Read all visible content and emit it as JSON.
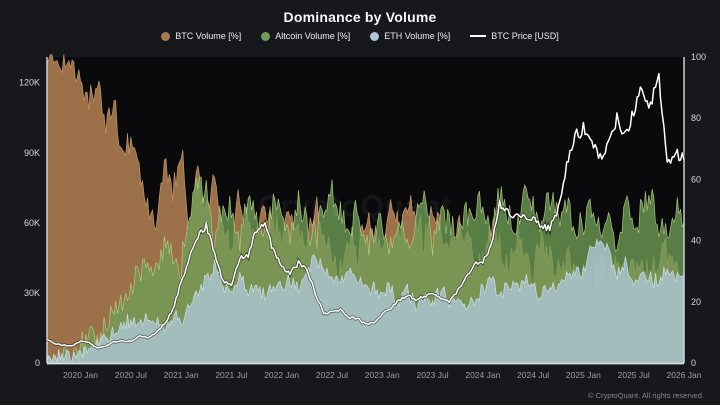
{
  "header": {
    "title": "Dominance by Volume"
  },
  "watermark": {
    "text": "CryptoQuant"
  },
  "footer": {
    "copyright": "© CryptoQuant. All rights reserved."
  },
  "chart_data": {
    "type": "area",
    "title": "Dominance by Volume",
    "background": "#17181c",
    "plot_background": "#0a0a0c",
    "grid": false,
    "legend_position": "top-center",
    "months": [
      "2019-09",
      "2019-10",
      "2019-11",
      "2019-12",
      "2020-01",
      "2020-02",
      "2020-03",
      "2020-04",
      "2020-05",
      "2020-06",
      "2020-07",
      "2020-08",
      "2020-09",
      "2020-10",
      "2020-11",
      "2020-12",
      "2021-01",
      "2021-02",
      "2021-03",
      "2021-04",
      "2021-05",
      "2021-06",
      "2021-07",
      "2021-08",
      "2021-09",
      "2021-10",
      "2021-11",
      "2021-12",
      "2022-01",
      "2022-02",
      "2022-03",
      "2022-04",
      "2022-05",
      "2022-06",
      "2022-07",
      "2022-08",
      "2022-09",
      "2022-10",
      "2022-11",
      "2022-12",
      "2023-01",
      "2023-02",
      "2023-03",
      "2023-04",
      "2023-05",
      "2023-06",
      "2023-07",
      "2023-08",
      "2023-09",
      "2023-10",
      "2023-11",
      "2023-12",
      "2024-01",
      "2024-02",
      "2024-03",
      "2024-04",
      "2024-05",
      "2024-06",
      "2024-07",
      "2024-08",
      "2024-09",
      "2024-10",
      "2024-11",
      "2024-12",
      "2025-01",
      "2025-02",
      "2025-03",
      "2025-04",
      "2025-05",
      "2025-06",
      "2025-07",
      "2025-08",
      "2025-09",
      "2025-10",
      "2025-11",
      "2025-12",
      "2026-01"
    ],
    "series": [
      {
        "name": "BTC Volume [%]",
        "axis": "right",
        "color": "#a9794e",
        "stroke": "#c9a06e",
        "opacity": 0.92,
        "values": [
          99,
          97,
          98,
          96,
          93,
          85,
          90,
          78,
          85,
          70,
          75,
          62,
          55,
          45,
          70,
          55,
          70,
          45,
          62,
          50,
          58,
          42,
          38,
          55,
          45,
          40,
          52,
          45,
          40,
          50,
          44,
          38,
          52,
          42,
          36,
          30,
          42,
          35,
          48,
          40,
          38,
          52,
          42,
          55,
          45,
          40,
          50,
          42,
          38,
          45,
          40,
          35,
          32,
          45,
          38,
          30,
          42,
          35,
          30,
          38,
          32,
          28,
          35,
          30,
          28,
          26,
          32,
          30,
          34,
          28,
          35,
          30,
          28,
          33,
          36,
          32,
          30
        ]
      },
      {
        "name": "Altcoin Volume [%]",
        "axis": "right",
        "color": "#6f9f56",
        "stroke": "#b3cf85",
        "opacity": 0.78,
        "values": [
          4,
          3,
          4,
          3,
          5,
          8,
          10,
          12,
          18,
          22,
          25,
          28,
          32,
          30,
          38,
          35,
          30,
          48,
          60,
          55,
          38,
          52,
          48,
          40,
          55,
          45,
          42,
          50,
          48,
          40,
          52,
          45,
          40,
          50,
          55,
          48,
          42,
          50,
          38,
          45,
          45,
          38,
          50,
          35,
          48,
          52,
          40,
          48,
          45,
          40,
          50,
          48,
          52,
          40,
          55,
          48,
          45,
          55,
          50,
          42,
          55,
          48,
          52,
          45,
          45,
          52,
          42,
          48,
          40,
          52,
          44,
          50,
          55,
          46,
          42,
          50,
          46
        ]
      },
      {
        "name": "ETH Volume [%]",
        "axis": "right",
        "color": "#aec7d8",
        "stroke": "#cfe2ee",
        "opacity": 0.8,
        "values": [
          2,
          2,
          2,
          2,
          3,
          5,
          6,
          8,
          10,
          12,
          14,
          12,
          16,
          14,
          12,
          15,
          14,
          18,
          22,
          28,
          32,
          25,
          22,
          28,
          24,
          26,
          22,
          25,
          25,
          28,
          24,
          30,
          34,
          32,
          28,
          26,
          30,
          28,
          25,
          24,
          22,
          25,
          20,
          24,
          18,
          22,
          20,
          24,
          20,
          22,
          18,
          20,
          24,
          28,
          22,
          26,
          24,
          28,
          25,
          22,
          26,
          24,
          28,
          30,
          30,
          38,
          42,
          36,
          28,
          32,
          26,
          30,
          28,
          26,
          32,
          28,
          27
        ]
      }
    ],
    "price": {
      "name": "BTC Price [USD]",
      "axis": "left",
      "color": "#ffffff",
      "unit": "K USD",
      "values": [
        10,
        8.3,
        7.6,
        7.2,
        9.4,
        8.8,
        6.4,
        7.1,
        9.2,
        9.4,
        9.2,
        11.7,
        10.8,
        13,
        16.5,
        23,
        34,
        46,
        55,
        59,
        47,
        35,
        33,
        45,
        46,
        57,
        61,
        48,
        41,
        39,
        43,
        40,
        30,
        21,
        22,
        23,
        19.5,
        19.3,
        16.8,
        16.8,
        21,
        23.5,
        27,
        29,
        27,
        28.5,
        29.5,
        27.5,
        26.5,
        31,
        36.5,
        43,
        43,
        50,
        68,
        64,
        63,
        63,
        62,
        59,
        58,
        66,
        85,
        98,
        100,
        96,
        88,
        93,
        105,
        96,
        108,
        117,
        110,
        122,
        84,
        91,
        87
      ]
    },
    "axes": {
      "left": {
        "max": 131,
        "ticks": [
          0,
          30,
          60,
          90,
          120
        ],
        "tick_labels": [
          "0",
          "30K",
          "60K",
          "90K",
          "120K"
        ],
        "label_color": "#d6d8dc"
      },
      "right": {
        "min": 0,
        "max": 100,
        "ticks": [
          0,
          20,
          40,
          60,
          80,
          100
        ],
        "tick_labels": [
          "0",
          "20",
          "40",
          "60",
          "80",
          "100"
        ],
        "label_color": "#d6d8dc"
      },
      "x": {
        "label_color": "#9b9ea5",
        "ticks": [
          {
            "i": 4,
            "label": "2020 Jan"
          },
          {
            "i": 10,
            "label": "2020 Jul"
          },
          {
            "i": 16,
            "label": "2021 Jan"
          },
          {
            "i": 22,
            "label": "2021 Jul"
          },
          {
            "i": 28,
            "label": "2022 Jan"
          },
          {
            "i": 34,
            "label": "2022 Jul"
          },
          {
            "i": 40,
            "label": "2023 Jan"
          },
          {
            "i": 46,
            "label": "2023 Jul"
          },
          {
            "i": 52,
            "label": "2024 Jan"
          },
          {
            "i": 58,
            "label": "2024 Jul"
          },
          {
            "i": 64,
            "label": "2025 Jan"
          },
          {
            "i": 70,
            "label": "2025 Jul"
          },
          {
            "i": 76,
            "label": "2026 Jan"
          }
        ]
      }
    },
    "texture_noise": {
      "btc": 6.5,
      "alt": 6.5,
      "eth": 3.0,
      "price_rel": 0.035
    }
  }
}
